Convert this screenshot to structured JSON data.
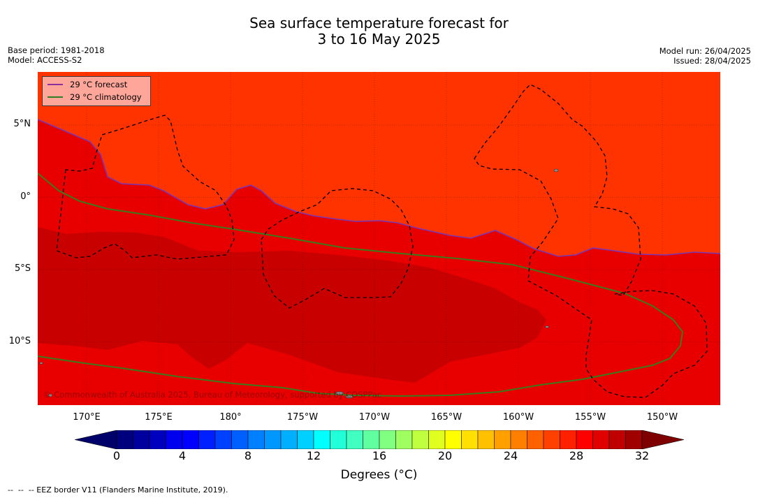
{
  "title": {
    "line1": "Sea surface temperature forecast for",
    "line2": "3 to 16 May 2025"
  },
  "meta_left": {
    "base_period": "Base period: 1981-2018",
    "model": "Model: ACCESS-S2"
  },
  "meta_right": {
    "model_run": "Model run: 26/04/2025",
    "issued": "Issued: 28/04/2025"
  },
  "legend": {
    "forecast": {
      "label": "29 °C  forecast",
      "color": "#8b2f9a"
    },
    "climatology": {
      "label": "29 °C  climatology",
      "color": "#2f7d22"
    }
  },
  "map": {
    "lat_ticks": [
      {
        "value": 5,
        "label": "5°N"
      },
      {
        "value": 0,
        "label": "0°"
      },
      {
        "value": -5,
        "label": "5°S"
      },
      {
        "value": -10,
        "label": "10°S"
      }
    ],
    "lon_ticks": [
      {
        "value": 170,
        "label": "170°E"
      },
      {
        "value": 175,
        "label": "175°E"
      },
      {
        "value": 180,
        "label": "180°"
      },
      {
        "value": 185,
        "label": "175°W"
      },
      {
        "value": 190,
        "label": "170°W"
      },
      {
        "value": 195,
        "label": "165°W"
      },
      {
        "value": 200,
        "label": "160°W"
      },
      {
        "value": 205,
        "label": "155°W"
      },
      {
        "value": 210,
        "label": "150°W"
      }
    ],
    "copyright": "© Commonwealth of Australia 2025, Bureau of Meteorology, supported by COSPPac",
    "colors": {
      "above_29": "#ff3300",
      "t29_30": "#e80000",
      "t30_31": "#c80000"
    }
  },
  "colorbar": {
    "label": "Degrees ($^\\circ$C)",
    "label_display": "Degrees (°C)",
    "ticks": [
      0,
      4,
      8,
      12,
      16,
      20,
      24,
      28,
      32
    ],
    "min": 0,
    "max": 32,
    "step": 1,
    "colors": [
      "#00007f",
      "#00009f",
      "#0000bf",
      "#0000ef",
      "#0000ff",
      "#0020ff",
      "#0040ff",
      "#0060ff",
      "#0080ff",
      "#0098ff",
      "#00b0ff",
      "#00d0ff",
      "#00ffff",
      "#20ffd8",
      "#40ffc0",
      "#60ffa0",
      "#80ff80",
      "#a0ff60",
      "#c0ff40",
      "#e0ff20",
      "#ffff00",
      "#ffe000",
      "#ffc000",
      "#ffa000",
      "#ff8000",
      "#ff6000",
      "#ff4000",
      "#ff2000",
      "#ff0000",
      "#e00000",
      "#c00000",
      "#a00000"
    ],
    "extend_low": "#00006a",
    "extend_high": "#7f0000"
  },
  "footer": "--  --  -- EEZ border V11 (Flanders Marine Institute, 2019)."
}
